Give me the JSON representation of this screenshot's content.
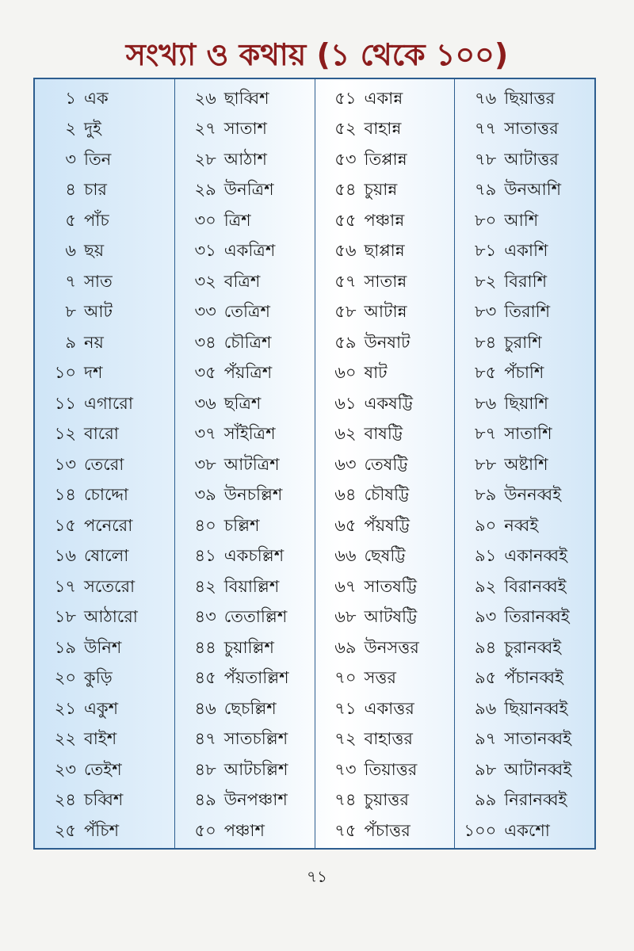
{
  "title": "সংখ্যা ও কথায় (১ থেকে ১০০)",
  "columns": [
    [
      [
        "১",
        "এক"
      ],
      [
        "২",
        "দুই"
      ],
      [
        "৩",
        "তিন"
      ],
      [
        "৪",
        "চার"
      ],
      [
        "৫",
        "পাঁচ"
      ],
      [
        "৬",
        "ছয়"
      ],
      [
        "৭",
        "সাত"
      ],
      [
        "৮",
        "আট"
      ],
      [
        "৯",
        "নয়"
      ],
      [
        "১০",
        "দশ"
      ],
      [
        "১১",
        "এগারো"
      ],
      [
        "১২",
        "বারো"
      ],
      [
        "১৩",
        "তেরো"
      ],
      [
        "১৪",
        "চোদ্দো"
      ],
      [
        "১৫",
        "পনেরো"
      ],
      [
        "১৬",
        "ষোলো"
      ],
      [
        "১৭",
        "সতেরো"
      ],
      [
        "১৮",
        "আঠারো"
      ],
      [
        "১৯",
        "উনিশ"
      ],
      [
        "২০",
        "কুড়ি"
      ],
      [
        "২১",
        "একুশ"
      ],
      [
        "২২",
        "বাইশ"
      ],
      [
        "২৩",
        "তেইশ"
      ],
      [
        "২৪",
        "চব্বিশ"
      ],
      [
        "২৫",
        "পঁচিশ"
      ]
    ],
    [
      [
        "২৬",
        "ছাব্বিশ"
      ],
      [
        "২৭",
        "সাতাশ"
      ],
      [
        "২৮",
        "আঠাশ"
      ],
      [
        "২৯",
        "উনত্রিশ"
      ],
      [
        "৩০",
        "ত্রিশ"
      ],
      [
        "৩১",
        "একত্রিশ"
      ],
      [
        "৩২",
        "বত্রিশ"
      ],
      [
        "৩৩",
        "তেত্রিশ"
      ],
      [
        "৩৪",
        "চৌত্রিশ"
      ],
      [
        "৩৫",
        "পঁয়ত্রিশ"
      ],
      [
        "৩৬",
        "ছত্রিশ"
      ],
      [
        "৩৭",
        "সাঁইত্রিশ"
      ],
      [
        "৩৮",
        "আটত্রিশ"
      ],
      [
        "৩৯",
        "উনচল্লিশ"
      ],
      [
        "৪০",
        "চল্লিশ"
      ],
      [
        "৪১",
        "একচল্লিশ"
      ],
      [
        "৪২",
        "বিয়াল্লিশ"
      ],
      [
        "৪৩",
        "তেতাল্লিশ"
      ],
      [
        "৪৪",
        "চুয়াল্লিশ"
      ],
      [
        "৪৫",
        "পঁয়তাল্লিশ"
      ],
      [
        "৪৬",
        "ছেচল্লিশ"
      ],
      [
        "৪৭",
        "সাতচল্লিশ"
      ],
      [
        "৪৮",
        "আটচল্লিশ"
      ],
      [
        "৪৯",
        "উনপঞ্চাশ"
      ],
      [
        "৫০",
        "পঞ্চাশ"
      ]
    ],
    [
      [
        "৫১",
        "একান্ন"
      ],
      [
        "৫২",
        "বাহান্ন"
      ],
      [
        "৫৩",
        "তিপ্পান্ন"
      ],
      [
        "৫৪",
        "চুয়ান্ন"
      ],
      [
        "৫৫",
        "পঞ্চান্ন"
      ],
      [
        "৫৬",
        "ছাপ্পান্ন"
      ],
      [
        "৫৭",
        "সাতান্ন"
      ],
      [
        "৫৮",
        "আটান্ন"
      ],
      [
        "৫৯",
        "উনষাট"
      ],
      [
        "৬০",
        "ষাট"
      ],
      [
        "৬১",
        "একষট্টি"
      ],
      [
        "৬২",
        "বাষট্টি"
      ],
      [
        "৬৩",
        "তেষট্টি"
      ],
      [
        "৬৪",
        "চৌষট্টি"
      ],
      [
        "৬৫",
        "পঁয়ষট্টি"
      ],
      [
        "৬৬",
        "ছেষট্টি"
      ],
      [
        "৬৭",
        "সাতষট্টি"
      ],
      [
        "৬৮",
        "আটষট্টি"
      ],
      [
        "৬৯",
        "উনসত্তর"
      ],
      [
        "৭০",
        "সত্তর"
      ],
      [
        "৭১",
        "একাত্তর"
      ],
      [
        "৭২",
        "বাহাত্তর"
      ],
      [
        "৭৩",
        "তিয়াত্তর"
      ],
      [
        "৭৪",
        "চুয়াত্তর"
      ],
      [
        "৭৫",
        "পঁচাত্তর"
      ]
    ],
    [
      [
        "৭৬",
        "ছিয়াত্তর"
      ],
      [
        "৭৭",
        "সাতাত্তর"
      ],
      [
        "৭৮",
        "আটাত্তর"
      ],
      [
        "৭৯",
        "উনআশি"
      ],
      [
        "৮০",
        "আশি"
      ],
      [
        "৮১",
        "একাশি"
      ],
      [
        "৮২",
        "বিরাশি"
      ],
      [
        "৮৩",
        "তিরাশি"
      ],
      [
        "৮৪",
        "চুরাশি"
      ],
      [
        "৮৫",
        "পঁচাশি"
      ],
      [
        "৮৬",
        "ছিয়াশি"
      ],
      [
        "৮৭",
        "সাতাশি"
      ],
      [
        "৮৮",
        "অষ্টাশি"
      ],
      [
        "৮৯",
        "উননব্বই"
      ],
      [
        "৯০",
        "নব্বই"
      ],
      [
        "৯১",
        "একানব্বই"
      ],
      [
        "৯২",
        "বিরানব্বই"
      ],
      [
        "৯৩",
        "তিরানব্বই"
      ],
      [
        "৯৪",
        "চুরানব্বই"
      ],
      [
        "৯৫",
        "পঁচানব্বই"
      ],
      [
        "৯৬",
        "ছিয়ানব্বই"
      ],
      [
        "৯৭",
        "সাতানব্বই"
      ],
      [
        "৯৮",
        "আটানব্বই"
      ],
      [
        "৯৯",
        "নিরানব্বই"
      ],
      [
        "১০০",
        "একশো"
      ]
    ]
  ],
  "page_number": "৭১",
  "colors": {
    "title": "#8b1c1c",
    "border": "#2d5d8f",
    "table_tint": "#cfe5f7"
  }
}
